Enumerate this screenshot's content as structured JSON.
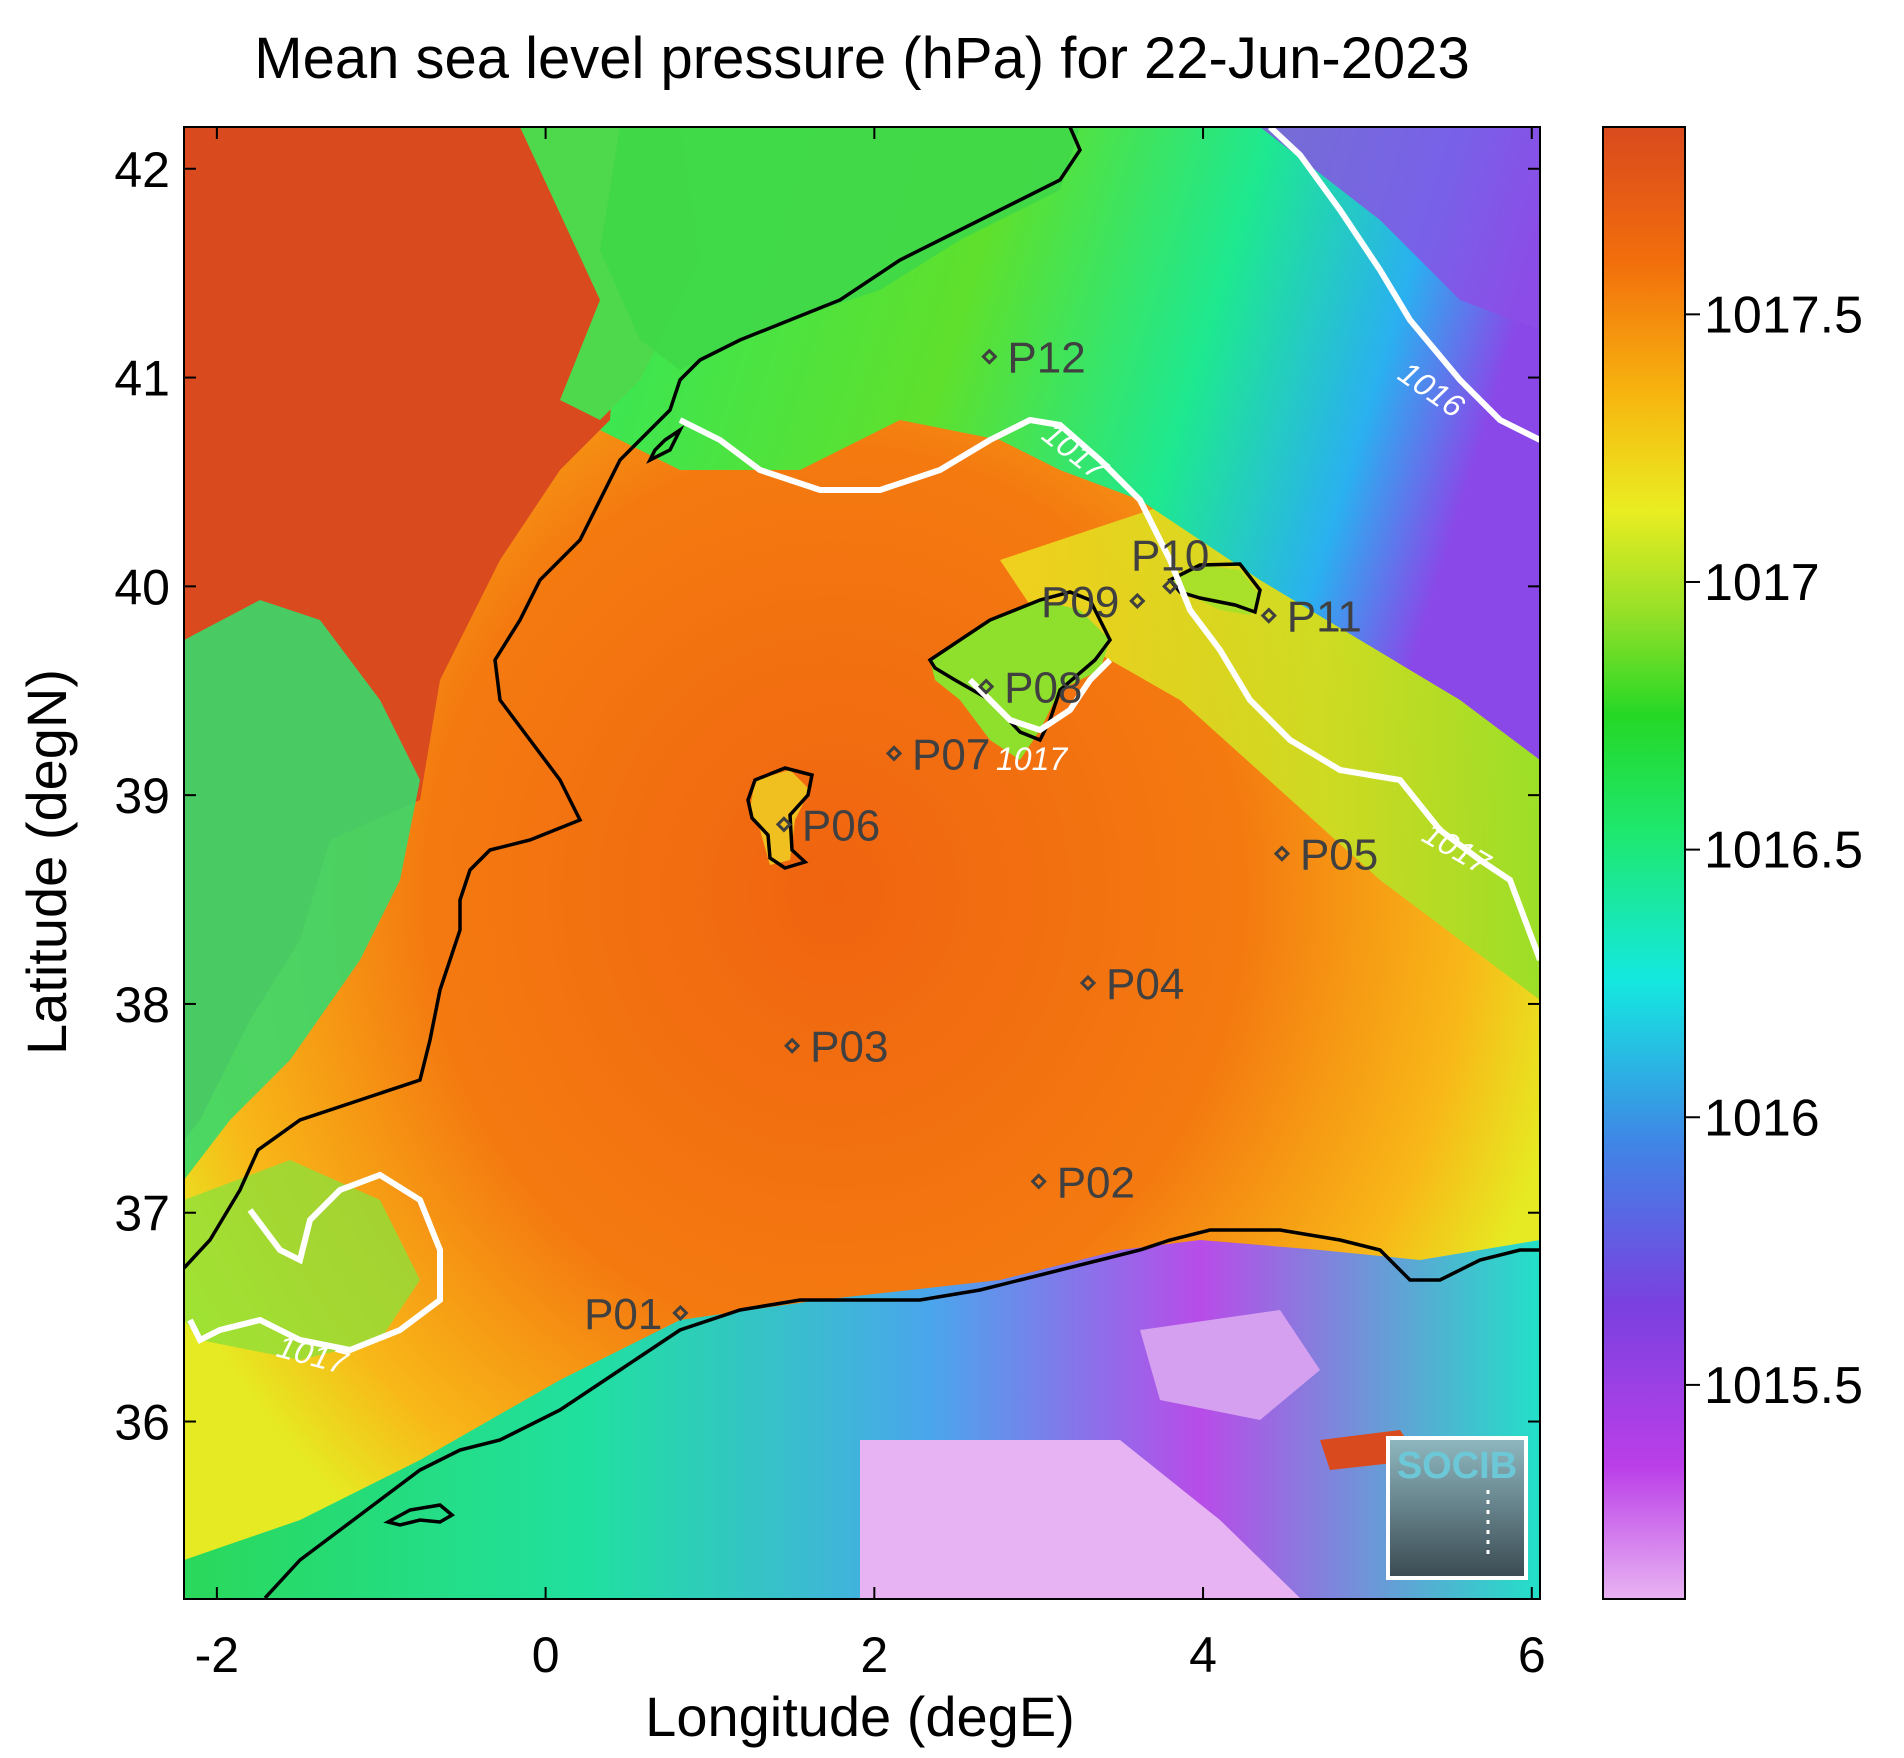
{
  "title": "Mean sea level pressure (hPa) for 22-Jun-2023",
  "x_axis": {
    "label": "Longitude (degE)",
    "min": -2.2,
    "max": 6.05,
    "ticks": [
      {
        "value": -2,
        "label": "-2"
      },
      {
        "value": 0,
        "label": "0"
      },
      {
        "value": 2,
        "label": "2"
      },
      {
        "value": 4,
        "label": "4"
      },
      {
        "value": 6,
        "label": "6"
      }
    ]
  },
  "y_axis": {
    "label": "Latitude (degN)",
    "min": 35.15,
    "max": 42.2,
    "ticks": [
      {
        "value": 36,
        "label": "36"
      },
      {
        "value": 37,
        "label": "37"
      },
      {
        "value": 38,
        "label": "38"
      },
      {
        "value": 39,
        "label": "39"
      },
      {
        "value": 40,
        "label": "40"
      },
      {
        "value": 41,
        "label": "41"
      },
      {
        "value": 42,
        "label": "42"
      }
    ]
  },
  "colorbar": {
    "min": 1015.1,
    "max": 1017.85,
    "ticks": [
      {
        "value": 1015.5,
        "label": "1015.5"
      },
      {
        "value": 1016,
        "label": "1016"
      },
      {
        "value": 1016.5,
        "label": "1016.5"
      },
      {
        "value": 1017,
        "label": "1017"
      },
      {
        "value": 1017.5,
        "label": "1017.5"
      }
    ],
    "colors": [
      "#e8b3f2",
      "#bb3fe8",
      "#7a40e0",
      "#3f86e6",
      "#14e8e0",
      "#1ee870",
      "#25d826",
      "#96e028",
      "#eaed21",
      "#f7b40f",
      "#f26d0c",
      "#d94a1e"
    ]
  },
  "stations": [
    {
      "name": "P01",
      "lon": 0.82,
      "lat": 36.52,
      "label_side": "left"
    },
    {
      "name": "P02",
      "lon": 3.0,
      "lat": 37.15,
      "label_side": "right"
    },
    {
      "name": "P03",
      "lon": 1.5,
      "lat": 37.8,
      "label_side": "right"
    },
    {
      "name": "P04",
      "lon": 3.3,
      "lat": 38.1,
      "label_side": "right"
    },
    {
      "name": "P05",
      "lon": 4.48,
      "lat": 38.72,
      "label_side": "right"
    },
    {
      "name": "P06",
      "lon": 1.45,
      "lat": 38.86,
      "label_side": "right"
    },
    {
      "name": "P07",
      "lon": 2.12,
      "lat": 39.2,
      "label_side": "right"
    },
    {
      "name": "P08",
      "lon": 2.68,
      "lat": 39.52,
      "label_side": "right"
    },
    {
      "name": "P09",
      "lon": 3.6,
      "lat": 39.93,
      "label_side": "left"
    },
    {
      "name": "P10",
      "lon": 3.8,
      "lat": 40.0,
      "label_side": "above"
    },
    {
      "name": "P11",
      "lon": 4.4,
      "lat": 39.86,
      "label_side": "right"
    },
    {
      "name": "P12",
      "lon": 2.7,
      "lat": 41.1,
      "label_side": "right"
    }
  ],
  "contours": [
    {
      "level": "1016",
      "label": "1016"
    },
    {
      "level": "1017",
      "label": "1017"
    }
  ],
  "logo": {
    "text": "SOCIB"
  },
  "colors": {
    "land_high": "#d94a1e",
    "sea_high": "#f26d0c",
    "contour": "#ffffff",
    "coast": "#000000"
  }
}
